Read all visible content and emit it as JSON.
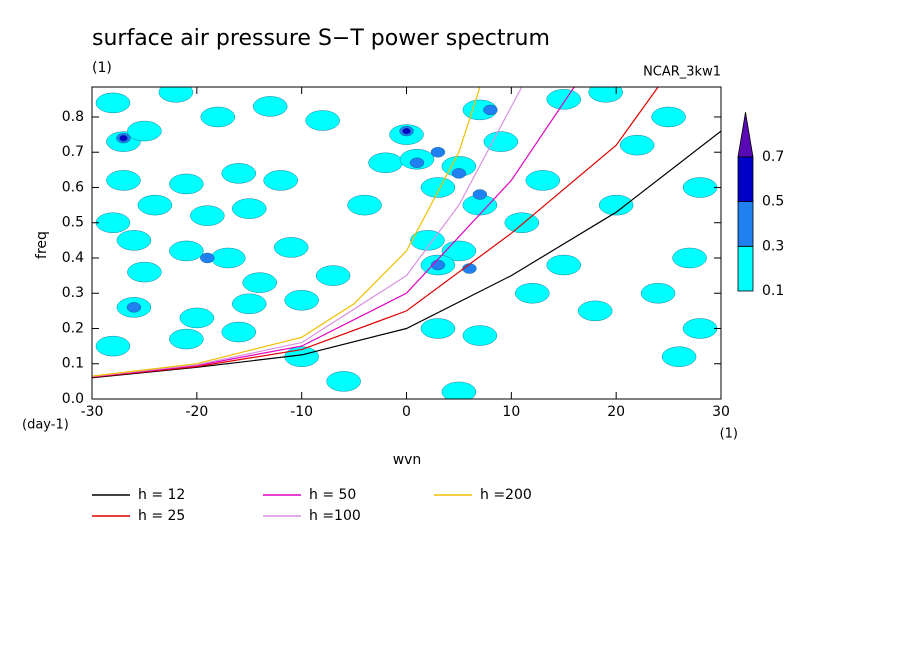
{
  "chart_data": {
    "type": "contour",
    "title": "surface air pressure S−T power spectrum",
    "subtitle": "(1)",
    "annotation": "NCAR_3kw1",
    "x_label": "wvn",
    "x_unit": "(1)",
    "y_label": "freq",
    "y_unit": "(day-1)",
    "xlim": [
      -30,
      30
    ],
    "xticks": [
      -30,
      -20,
      -10,
      0,
      10,
      20,
      30
    ],
    "ylim": [
      0,
      0.885
    ],
    "yticks": [
      {
        "value": 0,
        "label": "0.0"
      },
      0.1,
      0.2,
      0.3,
      0.4,
      0.5,
      0.6,
      0.7,
      0.8
    ],
    "colorbar": {
      "levels": [
        0.1,
        0.3,
        0.5,
        0.7
      ],
      "colors": [
        "#00ffff",
        "#2080f0",
        "#0000c8",
        "#5a0ab4"
      ]
    },
    "cells": {
      "x": [
        -28,
        -27,
        -25,
        -22,
        -18,
        -13,
        -8,
        -27,
        -21,
        -16,
        -12,
        -24,
        -19,
        -15,
        -28,
        -26,
        -21,
        -17,
        -11,
        -25,
        -14,
        -26,
        -20,
        -15,
        -10,
        -28,
        -21,
        -16,
        -10,
        -2,
        0,
        1,
        3,
        5,
        7,
        2,
        5,
        3,
        7,
        9,
        13,
        11,
        15,
        18,
        20,
        22,
        25,
        28,
        27,
        24,
        28,
        26,
        3,
        7,
        -6,
        5,
        15,
        19,
        12,
        -4,
        -7,
        -27,
        -26,
        0,
        1,
        3,
        6,
        5,
        8,
        3,
        7,
        -19,
        0,
        -27
      ],
      "y": [
        0.84,
        0.73,
        0.76,
        0.87,
        0.8,
        0.83,
        0.79,
        0.62,
        0.61,
        0.64,
        0.62,
        0.55,
        0.52,
        0.54,
        0.5,
        0.45,
        0.42,
        0.4,
        0.43,
        0.36,
        0.33,
        0.26,
        0.23,
        0.27,
        0.28,
        0.15,
        0.17,
        0.19,
        0.12,
        0.67,
        0.75,
        0.68,
        0.6,
        0.66,
        0.55,
        0.45,
        0.42,
        0.38,
        0.82,
        0.73,
        0.62,
        0.5,
        0.38,
        0.25,
        0.55,
        0.72,
        0.8,
        0.6,
        0.4,
        0.3,
        0.2,
        0.12,
        0.2,
        0.18,
        0.05,
        0.02,
        0.85,
        0.87,
        0.3,
        0.55,
        0.35,
        0.74,
        0.26,
        0.76,
        0.67,
        0.38,
        0.37,
        0.64,
        0.82,
        0.7,
        0.58,
        0.4,
        0.76,
        0.74
      ],
      "values": [
        0.1,
        0.1,
        0.1,
        0.1,
        0.1,
        0.1,
        0.1,
        0.1,
        0.1,
        0.1,
        0.1,
        0.1,
        0.1,
        0.1,
        0.1,
        0.1,
        0.1,
        0.1,
        0.1,
        0.1,
        0.1,
        0.1,
        0.1,
        0.1,
        0.1,
        0.1,
        0.1,
        0.1,
        0.1,
        0.1,
        0.1,
        0.1,
        0.1,
        0.1,
        0.1,
        0.1,
        0.1,
        0.1,
        0.1,
        0.1,
        0.1,
        0.1,
        0.1,
        0.1,
        0.1,
        0.1,
        0.1,
        0.1,
        0.1,
        0.1,
        0.1,
        0.1,
        0.1,
        0.1,
        0.1,
        0.1,
        0.1,
        0.1,
        0.1,
        0.1,
        0.1,
        0.3,
        0.3,
        0.3,
        0.3,
        0.3,
        0.3,
        0.3,
        0.3,
        0.3,
        0.3,
        0.3,
        0.5,
        0.5
      ]
    },
    "series": [
      {
        "name": "h = 12",
        "color": "#000000",
        "x": [
          -30,
          -20,
          -10,
          0,
          10,
          20,
          30
        ],
        "values": [
          0.06,
          0.09,
          0.125,
          0.2,
          0.35,
          0.53,
          0.76
        ]
      },
      {
        "name": "h = 25",
        "color": "#e00000",
        "x": [
          -30,
          -20,
          -10,
          0,
          10,
          20,
          24
        ],
        "values": [
          0.062,
          0.092,
          0.14,
          0.25,
          0.47,
          0.72,
          0.885
        ]
      },
      {
        "name": "h = 50",
        "color": "#e000c0",
        "x": [
          -30,
          -20,
          -10,
          0,
          10,
          16
        ],
        "values": [
          0.063,
          0.095,
          0.15,
          0.3,
          0.62,
          0.885
        ]
      },
      {
        "name": "h =100",
        "color": "#d890e0",
        "x": [
          -30,
          -20,
          -10,
          0,
          5,
          11
        ],
        "values": [
          0.064,
          0.097,
          0.16,
          0.35,
          0.55,
          0.885
        ]
      },
      {
        "name": "h =200",
        "color": "#f0c000",
        "x": [
          -30,
          -20,
          -10,
          -5,
          0,
          5,
          7
        ],
        "values": [
          0.065,
          0.1,
          0.175,
          0.27,
          0.42,
          0.7,
          0.885
        ]
      }
    ]
  }
}
